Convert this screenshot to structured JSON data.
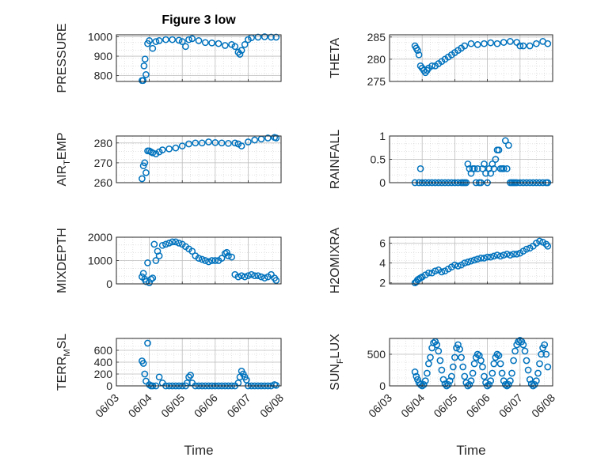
{
  "figure": {
    "title": "Figure 3 low"
  },
  "colors": {
    "marker": "#0072BD",
    "axis": "#262626",
    "grid": "#d0d0d0"
  },
  "chart_data": [
    {
      "type": "scatter",
      "ylabel": "PRESSURE",
      "xlim": [
        3.0,
        8.0
      ],
      "ylim": [
        770,
        1010
      ],
      "yticks": [
        800,
        900,
        1000
      ],
      "x": [
        3.78,
        3.81,
        3.84,
        3.87,
        3.9,
        3.95,
        4.0,
        4.1,
        4.2,
        4.3,
        4.5,
        4.7,
        4.9,
        5.0,
        5.1,
        5.2,
        5.3,
        5.5,
        5.7,
        5.9,
        6.1,
        6.3,
        6.5,
        6.6,
        6.7,
        6.75,
        6.8,
        6.9,
        7.0,
        7.1,
        7.3,
        7.5,
        7.7,
        7.85
      ],
      "y": [
        775,
        775,
        850,
        885,
        805,
        965,
        980,
        940,
        975,
        980,
        985,
        985,
        982,
        975,
        950,
        985,
        990,
        980,
        970,
        968,
        965,
        955,
        960,
        950,
        920,
        910,
        930,
        960,
        985,
        995,
        998,
        1000,
        998,
        998
      ]
    },
    {
      "type": "scatter",
      "ylabel": "THETA",
      "xlim": [
        3.0,
        8.0
      ],
      "ylim": [
        275,
        285.5
      ],
      "yticks": [
        275,
        280,
        285
      ],
      "x": [
        3.78,
        3.82,
        3.86,
        3.9,
        3.95,
        4.0,
        4.05,
        4.1,
        4.15,
        4.2,
        4.3,
        4.4,
        4.5,
        4.6,
        4.7,
        4.8,
        4.9,
        5.0,
        5.1,
        5.2,
        5.3,
        5.5,
        5.7,
        5.9,
        6.1,
        6.3,
        6.5,
        6.7,
        6.9,
        7.0,
        7.1,
        7.3,
        7.5,
        7.7,
        7.85
      ],
      "y": [
        283,
        282.5,
        282,
        281,
        278.5,
        278,
        277.5,
        277,
        277.5,
        278,
        278.5,
        278.5,
        279,
        279.5,
        280,
        280.5,
        281,
        281.5,
        282,
        282.5,
        283,
        283.5,
        283.3,
        283.5,
        283.7,
        283.5,
        283.8,
        284,
        283.8,
        283,
        283,
        283,
        283.5,
        284,
        283.5
      ]
    },
    {
      "type": "scatter",
      "ylabel": "AIR_TEMP",
      "ylabel_main": "AIR",
      "ylabel_sub": "T",
      "ylabel_tail": "EMP",
      "xlim": [
        3.0,
        8.0
      ],
      "ylim": [
        260,
        283.5
      ],
      "yticks": [
        260,
        270,
        280
      ],
      "x": [
        3.78,
        3.82,
        3.86,
        3.9,
        3.95,
        4.0,
        4.05,
        4.1,
        4.2,
        4.3,
        4.4,
        4.6,
        4.8,
        5.0,
        5.2,
        5.4,
        5.6,
        5.8,
        6.0,
        6.2,
        6.4,
        6.6,
        6.7,
        6.8,
        7.0,
        7.2,
        7.4,
        7.6,
        7.8,
        7.85
      ],
      "y": [
        262,
        268.5,
        270,
        265,
        276,
        276,
        275.5,
        275,
        274.5,
        275.5,
        276.5,
        277,
        277.5,
        278.5,
        279.5,
        280,
        280,
        280.5,
        280.2,
        280,
        279.8,
        280,
        279.5,
        278.5,
        280.5,
        281.5,
        282,
        282.5,
        282.8,
        282.5
      ]
    },
    {
      "type": "scatter",
      "ylabel": "RAINFALL",
      "xlim": [
        3.0,
        8.0
      ],
      "ylim": [
        0,
        1.0
      ],
      "yticks": [
        0,
        0.5,
        1
      ],
      "x": [
        3.78,
        3.9,
        3.95,
        4.0,
        4.1,
        4.2,
        4.3,
        4.4,
        4.5,
        4.6,
        4.7,
        4.8,
        4.9,
        5.0,
        5.1,
        5.2,
        5.25,
        5.3,
        5.35,
        5.4,
        5.45,
        5.5,
        5.55,
        5.6,
        5.65,
        5.7,
        5.75,
        5.8,
        5.85,
        5.9,
        5.95,
        6.0,
        6.05,
        6.1,
        6.15,
        6.2,
        6.25,
        6.3,
        6.35,
        6.4,
        6.45,
        6.5,
        6.55,
        6.6,
        6.65,
        6.7,
        6.75,
        6.8,
        6.85,
        6.9,
        7.0,
        7.1,
        7.2,
        7.3,
        7.4,
        7.5,
        7.6,
        7.7,
        7.8,
        7.85
      ],
      "y": [
        0,
        0,
        0.3,
        0,
        0,
        0,
        0,
        0,
        0,
        0,
        0,
        0,
        0,
        0,
        0,
        0,
        0,
        0,
        0,
        0.4,
        0.3,
        0.2,
        0.3,
        0.3,
        0,
        0.3,
        0,
        0,
        0.3,
        0.4,
        0.2,
        0,
        0.3,
        0.2,
        0.4,
        0.3,
        0.5,
        0.7,
        0.7,
        0.3,
        0.3,
        0.3,
        0.9,
        0.3,
        0.8,
        0,
        0,
        0,
        0,
        0,
        0,
        0,
        0,
        0,
        0,
        0,
        0,
        0,
        0,
        0
      ]
    },
    {
      "type": "scatter",
      "ylabel": "MIXDEPTH",
      "xlim": [
        3.0,
        8.0
      ],
      "ylim": [
        0,
        2000
      ],
      "yticks": [
        0,
        1000,
        2000
      ],
      "x": [
        3.78,
        3.82,
        3.86,
        3.9,
        3.95,
        4.0,
        4.05,
        4.1,
        4.15,
        4.2,
        4.25,
        4.3,
        4.4,
        4.5,
        4.6,
        4.7,
        4.8,
        4.9,
        5.0,
        5.1,
        5.2,
        5.3,
        5.4,
        5.5,
        5.6,
        5.7,
        5.8,
        5.9,
        6.0,
        6.1,
        6.2,
        6.3,
        6.35,
        6.4,
        6.5,
        6.6,
        6.7,
        6.8,
        6.9,
        7.0,
        7.1,
        7.2,
        7.3,
        7.4,
        7.5,
        7.6,
        7.7,
        7.8,
        7.85
      ],
      "y": [
        300,
        450,
        200,
        100,
        900,
        50,
        200,
        250,
        1700,
        1000,
        1400,
        1200,
        1650,
        1700,
        1750,
        1800,
        1800,
        1750,
        1700,
        1600,
        1500,
        1400,
        1200,
        1100,
        1050,
        1000,
        950,
        1000,
        1000,
        1000,
        1100,
        1300,
        1350,
        1200,
        1150,
        400,
        300,
        350,
        300,
        350,
        400,
        350,
        350,
        300,
        250,
        300,
        400,
        250,
        150
      ]
    },
    {
      "type": "scatter",
      "ylabel": "H2OMIXRA",
      "xlim": [
        3.0,
        8.0
      ],
      "ylim": [
        1.9,
        6.6
      ],
      "yticks": [
        2,
        4,
        6
      ],
      "x": [
        3.78,
        3.82,
        3.86,
        3.9,
        3.95,
        4.0,
        4.1,
        4.2,
        4.3,
        4.4,
        4.5,
        4.6,
        4.7,
        4.8,
        4.9,
        5.0,
        5.1,
        5.2,
        5.3,
        5.4,
        5.5,
        5.6,
        5.7,
        5.8,
        5.9,
        6.0,
        6.1,
        6.2,
        6.3,
        6.4,
        6.5,
        6.6,
        6.7,
        6.8,
        6.9,
        7.0,
        7.1,
        7.2,
        7.3,
        7.4,
        7.5,
        7.6,
        7.7,
        7.8,
        7.85
      ],
      "y": [
        2.0,
        2.1,
        2.3,
        2.4,
        2.5,
        2.6,
        2.8,
        3.0,
        3.0,
        3.2,
        3.3,
        3.1,
        3.2,
        3.4,
        3.6,
        3.8,
        3.7,
        3.8,
        4.0,
        4.1,
        4.2,
        4.3,
        4.4,
        4.5,
        4.5,
        4.6,
        4.6,
        4.7,
        4.8,
        4.7,
        4.8,
        4.9,
        4.8,
        4.9,
        4.9,
        5.0,
        5.2,
        5.4,
        5.5,
        5.7,
        6.0,
        6.2,
        6.1,
        5.9,
        5.7
      ]
    },
    {
      "type": "scatter",
      "ylabel": "TERR_MSL",
      "ylabel_main": "TERR",
      "ylabel_sub": "M",
      "ylabel_tail": "SL",
      "xlim": [
        3.0,
        8.0
      ],
      "ylim": [
        0,
        800
      ],
      "yticks": [
        0,
        200,
        400,
        600
      ],
      "x": [
        3.78,
        3.82,
        3.86,
        3.9,
        3.95,
        4.0,
        4.05,
        4.1,
        4.2,
        4.3,
        4.4,
        4.5,
        4.6,
        4.7,
        4.8,
        4.9,
        5.0,
        5.1,
        5.15,
        5.2,
        5.25,
        5.3,
        5.4,
        5.5,
        5.6,
        5.7,
        5.8,
        5.9,
        6.0,
        6.1,
        6.2,
        6.3,
        6.4,
        6.5,
        6.6,
        6.7,
        6.75,
        6.8,
        6.85,
        6.9,
        6.95,
        7.0,
        7.1,
        7.2,
        7.3,
        7.4,
        7.5,
        7.6,
        7.7,
        7.8,
        7.85
      ],
      "y": [
        420,
        380,
        200,
        80,
        720,
        20,
        0,
        0,
        0,
        150,
        50,
        0,
        0,
        0,
        0,
        0,
        0,
        0,
        50,
        150,
        180,
        50,
        0,
        0,
        0,
        0,
        0,
        0,
        0,
        0,
        0,
        0,
        0,
        0,
        0,
        50,
        150,
        250,
        200,
        150,
        100,
        0,
        0,
        0,
        0,
        0,
        0,
        0,
        0,
        20,
        10
      ]
    },
    {
      "type": "scatter",
      "ylabel": "SUN_FLUX",
      "ylabel_main": "SUN",
      "ylabel_sub": "F",
      "ylabel_tail": "LUX",
      "xlim": [
        3.0,
        8.0
      ],
      "ylim": [
        0,
        750
      ],
      "yticks": [
        0,
        500
      ],
      "x": [
        3.78,
        3.82,
        3.86,
        3.9,
        3.95,
        4.0,
        4.05,
        4.1,
        4.15,
        4.2,
        4.25,
        4.3,
        4.35,
        4.4,
        4.45,
        4.5,
        4.55,
        4.6,
        4.65,
        4.7,
        4.75,
        4.8,
        4.85,
        4.9,
        4.95,
        5.0,
        5.05,
        5.1,
        5.15,
        5.2,
        5.25,
        5.3,
        5.35,
        5.4,
        5.45,
        5.5,
        5.55,
        5.6,
        5.65,
        5.7,
        5.75,
        5.8,
        5.85,
        5.9,
        5.95,
        6.0,
        6.05,
        6.1,
        6.15,
        6.2,
        6.25,
        6.3,
        6.35,
        6.4,
        6.45,
        6.5,
        6.55,
        6.6,
        6.65,
        6.7,
        6.75,
        6.8,
        6.85,
        6.9,
        6.95,
        7.0,
        7.05,
        7.1,
        7.15,
        7.2,
        7.25,
        7.3,
        7.35,
        7.4,
        7.45,
        7.5,
        7.55,
        7.6,
        7.65,
        7.7,
        7.75,
        7.8,
        7.85
      ],
      "y": [
        220,
        150,
        100,
        50,
        20,
        0,
        20,
        80,
        200,
        350,
        450,
        600,
        680,
        700,
        650,
        550,
        400,
        250,
        100,
        30,
        0,
        20,
        80,
        150,
        300,
        450,
        600,
        650,
        580,
        450,
        300,
        150,
        50,
        0,
        20,
        80,
        200,
        350,
        450,
        500,
        480,
        400,
        300,
        150,
        50,
        0,
        20,
        80,
        200,
        350,
        450,
        500,
        480,
        350,
        200,
        80,
        20,
        0,
        20,
        80,
        200,
        400,
        550,
        650,
        700,
        720,
        700,
        650,
        550,
        400,
        250,
        100,
        30,
        0,
        20,
        80,
        200,
        350,
        500,
        600,
        650,
        500,
        300
      ]
    }
  ],
  "xaxis": {
    "label": "Time",
    "ticks": [
      {
        "value": 3,
        "label": "06/03"
      },
      {
        "value": 4,
        "label": "06/04"
      },
      {
        "value": 5,
        "label": "06/05"
      },
      {
        "value": 6,
        "label": "06/06"
      },
      {
        "value": 7,
        "label": "06/07"
      },
      {
        "value": 8,
        "label": "06/08"
      }
    ]
  }
}
